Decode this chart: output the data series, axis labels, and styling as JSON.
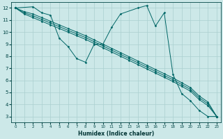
{
  "xlabel": "Humidex (Indice chaleur)",
  "bg_color": "#cce8e8",
  "grid_color": "#aacfcf",
  "line_color": "#006666",
  "xlim": [
    -0.5,
    23.5
  ],
  "ylim": [
    2.5,
    12.5
  ],
  "xticks": [
    0,
    1,
    2,
    3,
    4,
    5,
    6,
    7,
    8,
    9,
    10,
    11,
    12,
    13,
    14,
    15,
    16,
    17,
    18,
    19,
    20,
    21,
    22,
    23
  ],
  "yticks": [
    3,
    4,
    5,
    6,
    7,
    8,
    9,
    10,
    11,
    12
  ],
  "curved_x": [
    0,
    2,
    3,
    4,
    5,
    6,
    7,
    8,
    9,
    10,
    11,
    12,
    14,
    15,
    16,
    17,
    18,
    19,
    20,
    21,
    22,
    23
  ],
  "curved_y": [
    12,
    12.1,
    11.6,
    11.4,
    9.5,
    8.8,
    7.8,
    7.5,
    9.0,
    9.0,
    10.4,
    11.5,
    12.0,
    12.2,
    10.5,
    11.6,
    6.5,
    4.9,
    4.3,
    3.5,
    3.0,
    3.0
  ],
  "straight_lines": [
    {
      "x": [
        0,
        1,
        2,
        3,
        4,
        5,
        6,
        7,
        8,
        9,
        10,
        11,
        12,
        13,
        14,
        15,
        16,
        17,
        18,
        19,
        20,
        21,
        22,
        23
      ],
      "y": [
        12.0,
        11.7,
        11.5,
        11.2,
        10.9,
        10.6,
        10.3,
        10.0,
        9.7,
        9.35,
        9.0,
        8.65,
        8.3,
        7.95,
        7.6,
        7.25,
        6.9,
        6.55,
        6.2,
        5.8,
        5.4,
        4.7,
        4.2,
        3.0
      ]
    },
    {
      "x": [
        0,
        1,
        2,
        3,
        4,
        5,
        6,
        7,
        8,
        9,
        10,
        11,
        12,
        13,
        14,
        15,
        16,
        17,
        18,
        19,
        20,
        21,
        22,
        23
      ],
      "y": [
        12.0,
        11.6,
        11.35,
        11.05,
        10.75,
        10.45,
        10.15,
        9.85,
        9.55,
        9.2,
        8.85,
        8.5,
        8.15,
        7.8,
        7.45,
        7.1,
        6.75,
        6.4,
        6.05,
        5.65,
        5.25,
        4.55,
        4.05,
        3.0
      ]
    },
    {
      "x": [
        0,
        1,
        2,
        3,
        4,
        5,
        6,
        7,
        8,
        9,
        10,
        11,
        12,
        13,
        14,
        15,
        16,
        17,
        18,
        19,
        20,
        21,
        22,
        23
      ],
      "y": [
        12.0,
        11.5,
        11.2,
        10.9,
        10.6,
        10.3,
        10.0,
        9.7,
        9.4,
        9.05,
        8.7,
        8.35,
        8.0,
        7.65,
        7.3,
        6.95,
        6.6,
        6.25,
        5.9,
        5.5,
        5.1,
        4.4,
        3.9,
        3.0
      ]
    }
  ]
}
